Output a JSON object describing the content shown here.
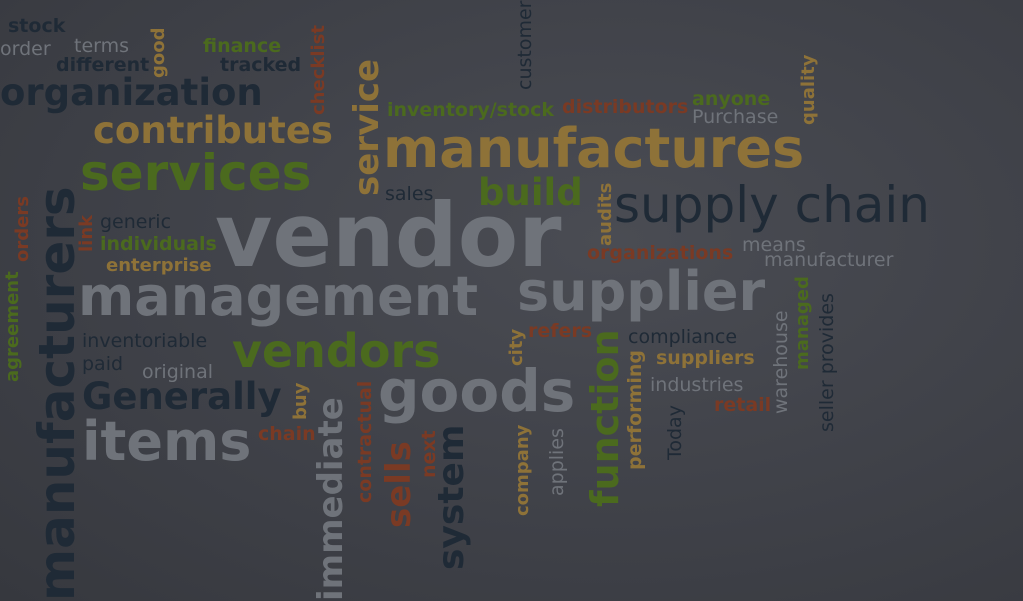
{
  "words": {
    "stock": "stock",
    "order": "order",
    "terms": "terms",
    "different": "different",
    "good": "good",
    "finance": "finance",
    "tracked": "tracked",
    "checklist": "checklist",
    "customer": "customer",
    "organization": "organization",
    "service": "service",
    "contributes": "contributes",
    "inventory_stock": "inventory/stock",
    "distributors": "distributors",
    "anyone": "anyone",
    "quality": "quality",
    "purchase": "Purchase",
    "manufactures": "manufactures",
    "services": "services",
    "build": "build",
    "sales": "sales",
    "supply_chain": "supply chain",
    "vendor": "vendor",
    "audits": "audits",
    "orders": "orders",
    "link": "link",
    "generic": "generic",
    "individuals": "individuals",
    "enterprise": "enterprise",
    "organizations": "organizations",
    "means": "means",
    "manufacturer": "manufacturer",
    "agreement": "agreement",
    "manufacturers": "manufacturers",
    "management": "management",
    "supplier": "supplier",
    "managed": "managed",
    "provides": "provides",
    "warehouse": "warehouse",
    "seller": "seller",
    "inventoriable": "inventoriable",
    "vendors": "vendors",
    "city": "city",
    "refers": "refers",
    "compliance": "compliance",
    "suppliers": "suppliers",
    "paid": "paid",
    "original": "original",
    "generally": "Generally",
    "buy": "buy",
    "immediate": "immediate",
    "goods": "goods",
    "function": "function",
    "performing": "performing",
    "industries": "industries",
    "retail": "retail",
    "today": "Today",
    "items": "items",
    "chain": "chain",
    "contractual": "contractual",
    "sells": "sells",
    "next": "next",
    "system": "system",
    "company": "company",
    "applies": "applies"
  },
  "colors": {
    "navy": "#1f2a36",
    "gray": "#6f737a",
    "green": "#4b6a1e",
    "orange": "#8e7238",
    "rust": "#7a3a24"
  }
}
